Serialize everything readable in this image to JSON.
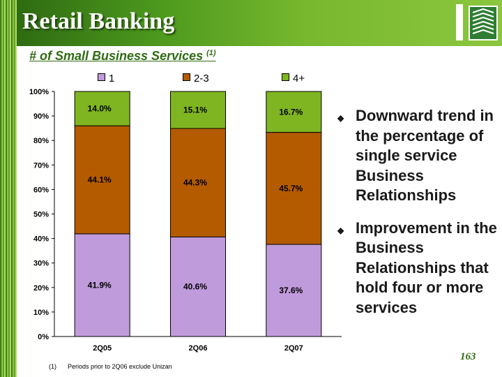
{
  "header": {
    "title": "Retail Banking"
  },
  "subtitle": {
    "text": "# of Small Business Services ",
    "superscript": "(1)"
  },
  "chart_data": {
    "type": "bar",
    "stacked": true,
    "categories": [
      "2Q05",
      "2Q06",
      "2Q07"
    ],
    "series": [
      {
        "name": "1",
        "color": "#c09bdb",
        "values": [
          41.9,
          40.6,
          37.6
        ],
        "labels": [
          "41.9%",
          "40.6%",
          "37.6%"
        ]
      },
      {
        "name": "2-3",
        "color": "#b45b00",
        "values": [
          44.1,
          44.3,
          45.7
        ],
        "labels": [
          "44.1%",
          "44.3%",
          "45.7%"
        ]
      },
      {
        "name": "4+",
        "color": "#7fb521",
        "values": [
          14.0,
          15.1,
          16.7
        ],
        "labels": [
          "14.0%",
          "15.1%",
          "16.7%"
        ]
      }
    ],
    "ylim": [
      0,
      100
    ],
    "yticks": [
      "0%",
      "10%",
      "20%",
      "30%",
      "40%",
      "50%",
      "60%",
      "70%",
      "80%",
      "90%",
      "100%"
    ],
    "legend_position": "top",
    "grid": false
  },
  "bullets": [
    "Downward trend in the percentage of single service Business Relationships",
    "Improvement in the Business Relationships that hold four or more services"
  ],
  "page_number": "163",
  "footnote": {
    "marker": "(1)",
    "text": "Periods prior to 2Q06 exclude Unizan"
  }
}
